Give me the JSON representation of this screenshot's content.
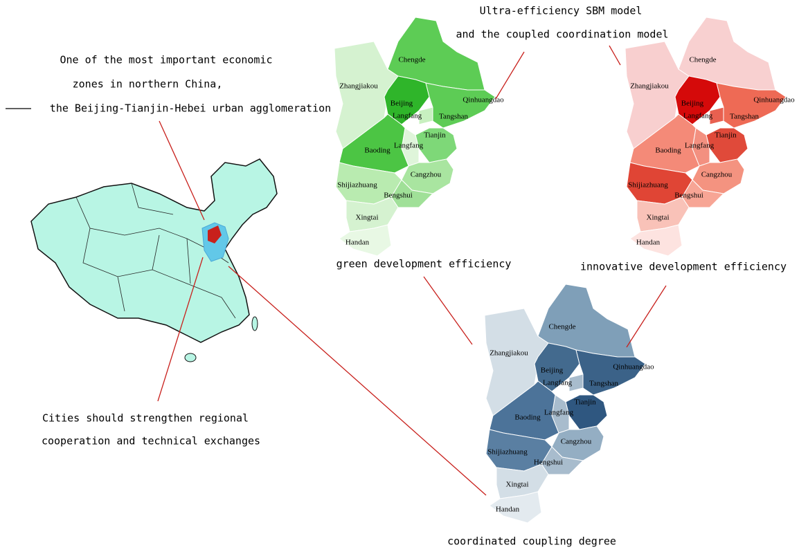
{
  "annotations": {
    "region": [
      "One of the most important economic",
      "zones in northern China,",
      "the Beijing-Tianjin-Hebei urban agglomeration"
    ],
    "method": [
      "Ultra-efficiency SBM model",
      "and the coupled coordination model"
    ],
    "recommendation": [
      "Cities should strengthen regional",
      "cooperation and technical exchanges"
    ]
  },
  "maps": [
    {
      "title": "green development efficiency",
      "labels": [
        "Chengde",
        "Zhangjiakou",
        "Qinhuangdao",
        "Beijing",
        "Langfang",
        "Tangshan",
        "Tianjin",
        "Langfang",
        "Baoding",
        "Cangzhou",
        "Shijiazhuang",
        "Bengshui",
        "Xingtai",
        "Handan"
      ]
    },
    {
      "title": "innovative development efficiency",
      "labels": [
        "Chengde",
        "Zhangjiakou",
        "Qinhuangdao",
        "Beijing",
        "Langfang",
        "Tangshan",
        "Tianjin",
        "Langfang",
        "Baoding",
        "Cangzhou",
        "Shijiazhuang",
        "Bengshui",
        "Xingtai",
        "Handan"
      ]
    },
    {
      "title": "coordinated coupling degree",
      "labels": [
        "Chengde",
        "Zhangjiakou",
        "Qinhuangdao",
        "Beijing",
        "Langfang",
        "Tangshan",
        "Tianjin",
        "Langfang",
        "Baoding",
        "Cangzhou",
        "Shijiazhuang",
        "Hengshui",
        "Xingtai",
        "Handan"
      ]
    }
  ]
}
